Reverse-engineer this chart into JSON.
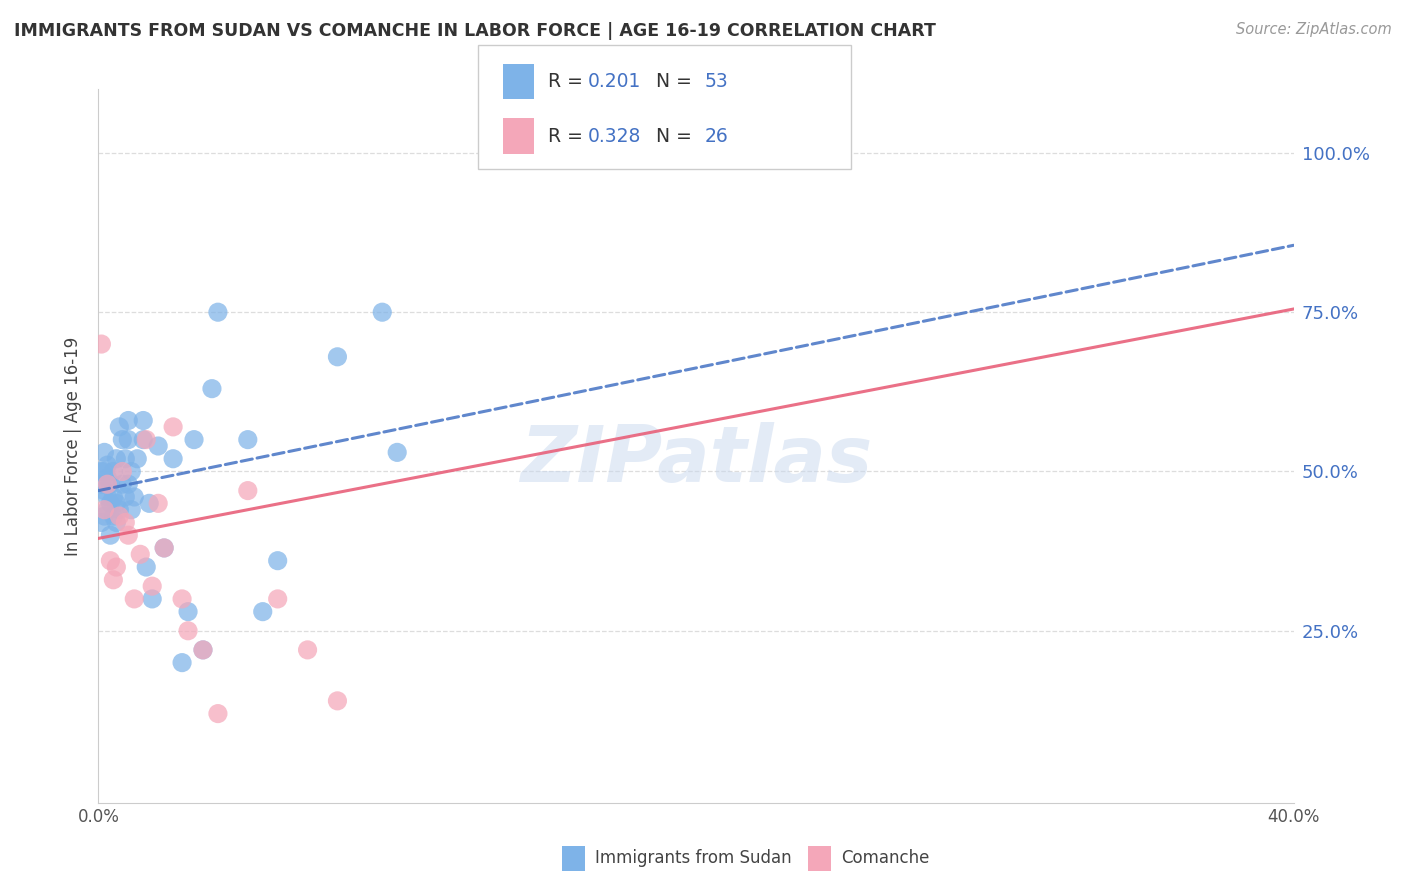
{
  "title": "IMMIGRANTS FROM SUDAN VS COMANCHE IN LABOR FORCE | AGE 16-19 CORRELATION CHART",
  "source": "Source: ZipAtlas.com",
  "ylabel": "In Labor Force | Age 16-19",
  "xlim": [
    0.0,
    0.4
  ],
  "ylim": [
    -0.02,
    1.1
  ],
  "xtick_pos": [
    0.0,
    0.1,
    0.2,
    0.3,
    0.4
  ],
  "xtick_labels": [
    "0.0%",
    "",
    "",
    "",
    "40.0%"
  ],
  "ytick_pos_right": [
    1.0,
    0.75,
    0.5,
    0.25
  ],
  "ytick_labels_right": [
    "100.0%",
    "75.0%",
    "50.0%",
    "25.0%"
  ],
  "watermark": "ZIPatlas",
  "series1_color": "#7EB3E8",
  "series2_color": "#F4A7B9",
  "line1_color": "#4472C4",
  "line2_color": "#E8607A",
  "r1": 0.201,
  "n1": 53,
  "r2": 0.328,
  "n2": 26,
  "legend_label1": "Immigrants from Sudan",
  "legend_label2": "Comanche",
  "blue_text_color": "#4472C4",
  "grid_color": "#DDDDDD",
  "background_color": "#FFFFFF",
  "line1_y0": 0.47,
  "line1_y1": 0.855,
  "line2_y0": 0.395,
  "line2_y1": 0.755,
  "series1_x": [
    0.001,
    0.001,
    0.001,
    0.002,
    0.002,
    0.002,
    0.002,
    0.003,
    0.003,
    0.003,
    0.003,
    0.004,
    0.004,
    0.004,
    0.005,
    0.005,
    0.005,
    0.006,
    0.006,
    0.006,
    0.007,
    0.007,
    0.008,
    0.008,
    0.009,
    0.009,
    0.01,
    0.01,
    0.01,
    0.011,
    0.011,
    0.012,
    0.013,
    0.015,
    0.015,
    0.016,
    0.017,
    0.018,
    0.02,
    0.022,
    0.025,
    0.028,
    0.03,
    0.032,
    0.035,
    0.038,
    0.04,
    0.05,
    0.055,
    0.06,
    0.08,
    0.095,
    0.1
  ],
  "series1_y": [
    0.42,
    0.48,
    0.5,
    0.43,
    0.47,
    0.5,
    0.53,
    0.44,
    0.46,
    0.49,
    0.51,
    0.4,
    0.45,
    0.48,
    0.43,
    0.46,
    0.5,
    0.42,
    0.45,
    0.52,
    0.44,
    0.57,
    0.48,
    0.55,
    0.46,
    0.52,
    0.48,
    0.55,
    0.58,
    0.44,
    0.5,
    0.46,
    0.52,
    0.55,
    0.58,
    0.35,
    0.45,
    0.3,
    0.54,
    0.38,
    0.52,
    0.2,
    0.28,
    0.55,
    0.22,
    0.63,
    0.75,
    0.55,
    0.28,
    0.36,
    0.68,
    0.75,
    0.53
  ],
  "series2_x": [
    0.001,
    0.002,
    0.003,
    0.004,
    0.005,
    0.006,
    0.007,
    0.008,
    0.009,
    0.01,
    0.012,
    0.014,
    0.016,
    0.018,
    0.02,
    0.022,
    0.025,
    0.028,
    0.03,
    0.035,
    0.04,
    0.05,
    0.06,
    0.07,
    0.08,
    0.2
  ],
  "series2_y": [
    0.7,
    0.44,
    0.48,
    0.36,
    0.33,
    0.35,
    0.43,
    0.5,
    0.42,
    0.4,
    0.3,
    0.37,
    0.55,
    0.32,
    0.45,
    0.38,
    0.57,
    0.3,
    0.25,
    0.22,
    0.12,
    0.47,
    0.3,
    0.22,
    0.14,
    1.0
  ]
}
